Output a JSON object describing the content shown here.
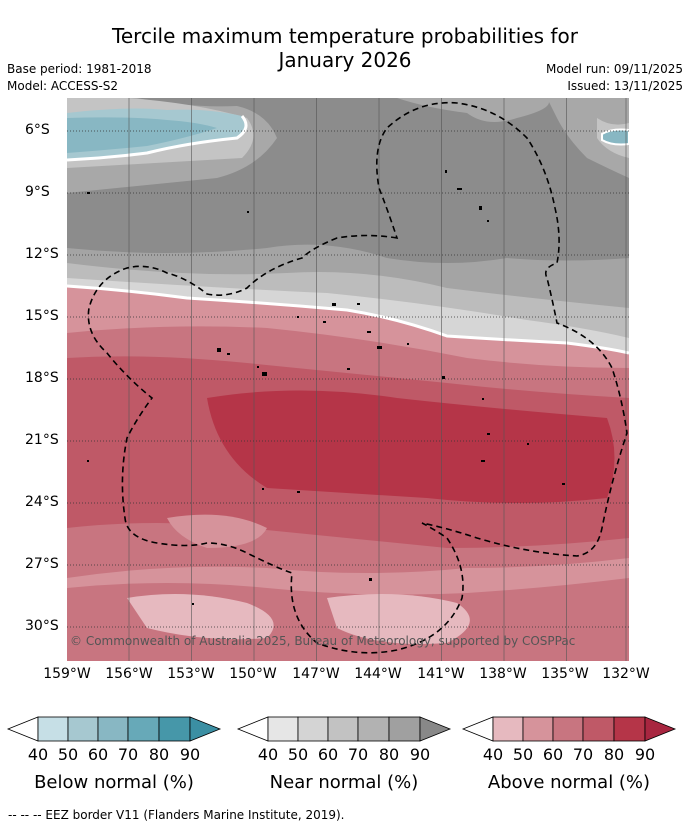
{
  "title": {
    "line1": "Tercile maximum temperature probabilities for",
    "line2": "January 2026"
  },
  "meta": {
    "base_period": "Base period: 1981-2018",
    "model": "Model: ACCESS-S2",
    "model_run": "Model run: 09/11/2025",
    "issued": "Issued: 13/11/2025"
  },
  "axes": {
    "lat_ticks": [
      "6°S",
      "9°S",
      "12°S",
      "15°S",
      "18°S",
      "21°S",
      "24°S",
      "27°S",
      "30°S"
    ],
    "lon_ticks": [
      "159°W",
      "156°W",
      "153°W",
      "150°W",
      "147°W",
      "144°W",
      "141°W",
      "138°W",
      "135°W",
      "132°W"
    ]
  },
  "credit": "© Commonwealth of Australia 2025, Bureau of Meteorology, supported by COSPPac",
  "colorbars": [
    {
      "name": "below",
      "label": "Below normal (%)",
      "ticks": [
        "40",
        "50",
        "60",
        "70",
        "80",
        "90"
      ],
      "colors": [
        "#ffffff",
        "#c6dfe6",
        "#a6c8d0",
        "#88b7c3",
        "#67a9b8",
        "#4697a9",
        "#3b8fa3"
      ]
    },
    {
      "name": "near",
      "label": "Near normal (%)",
      "ticks": [
        "40",
        "50",
        "60",
        "70",
        "80",
        "90"
      ],
      "colors": [
        "#ffffff",
        "#e6e6e6",
        "#d4d4d4",
        "#c2c2c2",
        "#b2b2b2",
        "#a0a0a0",
        "#888888"
      ]
    },
    {
      "name": "above",
      "label": "Above normal (%)",
      "ticks": [
        "40",
        "50",
        "60",
        "70",
        "80",
        "90"
      ],
      "colors": [
        "#ffffff",
        "#e6b9bf",
        "#d6939b",
        "#c87580",
        "#bf5967",
        "#b53548",
        "#a82640"
      ]
    }
  ],
  "footnote": "--  --  -- EEZ border V11 (Flanders Marine Institute, 2019)."
}
